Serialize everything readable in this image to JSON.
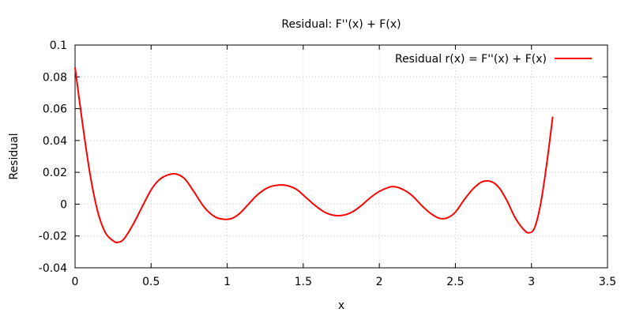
{
  "chart_data": {
    "type": "line",
    "title": "Residual: F''(x) + F(x)",
    "xlabel": "x",
    "ylabel": "Residual",
    "xlim": [
      0,
      3.5
    ],
    "ylim": [
      -0.04,
      0.1
    ],
    "xticks": [
      0,
      0.5,
      1,
      1.5,
      2,
      2.5,
      3,
      3.5
    ],
    "xtick_labels": [
      "0",
      "0.5",
      "1",
      "1.5",
      "2",
      "2.5",
      "3",
      "3.5"
    ],
    "yticks": [
      -0.04,
      -0.02,
      0,
      0.02,
      0.04,
      0.06,
      0.08,
      0.1
    ],
    "ytick_labels": [
      "-0.04",
      "-0.02",
      "0",
      "0.02",
      "0.04",
      "0.06",
      "0.08",
      "0.1"
    ],
    "grid": true,
    "legend_position": "top-right",
    "series": [
      {
        "name": "Residual r(x) = F''(x) + F(x)",
        "color": "#ff0000",
        "x": [
          0,
          0.05,
          0.1,
          0.15,
          0.2,
          0.25,
          0.28,
          0.32,
          0.38,
          0.45,
          0.5,
          0.55,
          0.6,
          0.66,
          0.72,
          0.78,
          0.85,
          0.92,
          0.98,
          1.03,
          1.08,
          1.14,
          1.2,
          1.27,
          1.34,
          1.4,
          1.46,
          1.52,
          1.58,
          1.64,
          1.7,
          1.76,
          1.82,
          1.88,
          1.94,
          2.0,
          2.06,
          2.1,
          2.16,
          2.22,
          2.28,
          2.34,
          2.4,
          2.45,
          2.5,
          2.56,
          2.62,
          2.68,
          2.74,
          2.79,
          2.84,
          2.89,
          2.94,
          2.98,
          3.02,
          3.06,
          3.1,
          3.14
        ],
        "y": [
          0.086,
          0.05,
          0.018,
          -0.005,
          -0.018,
          -0.023,
          -0.024,
          -0.022,
          -0.013,
          0.0,
          0.009,
          0.015,
          0.018,
          0.019,
          0.016,
          0.008,
          -0.002,
          -0.008,
          -0.0095,
          -0.009,
          -0.006,
          0.0,
          0.006,
          0.0105,
          0.012,
          0.0115,
          0.009,
          0.004,
          -0.001,
          -0.005,
          -0.007,
          -0.007,
          -0.005,
          -0.001,
          0.004,
          0.008,
          0.0105,
          0.011,
          0.009,
          0.005,
          -0.001,
          -0.006,
          -0.009,
          -0.0085,
          -0.005,
          0.003,
          0.01,
          0.0142,
          0.014,
          0.01,
          0.002,
          -0.008,
          -0.015,
          -0.018,
          -0.015,
          0.0,
          0.025,
          0.055
        ]
      }
    ]
  }
}
